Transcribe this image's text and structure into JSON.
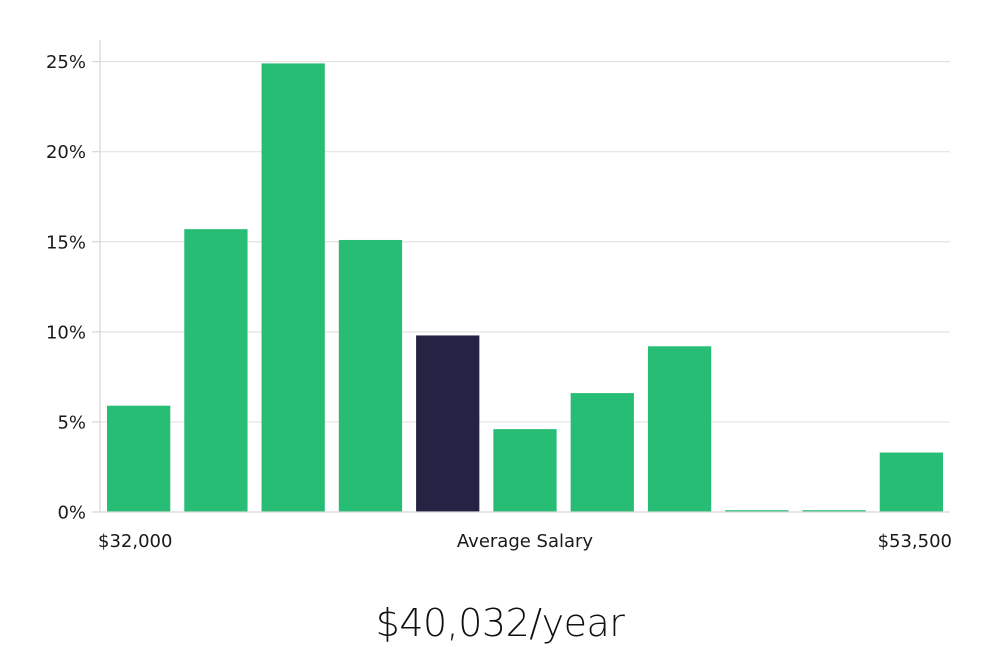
{
  "headline": "$40,032/year",
  "colors": {
    "bar": "#28bd75",
    "highlight": "#262243",
    "grid": "#e3e3e3",
    "axis": "#d6d6d6",
    "text": "#1a1a1a"
  },
  "chart_data": {
    "type": "bar",
    "title": "",
    "xlabel": "",
    "ylabel": "",
    "x_tick_labels": [
      {
        "label": "$32,000",
        "position": "left"
      },
      {
        "label": "Average Salary",
        "position": "center"
      },
      {
        "label": "$53,500",
        "position": "right"
      }
    ],
    "y_ticks": [
      0,
      5,
      10,
      15,
      20,
      25
    ],
    "y_tick_suffix": "%",
    "ylim": [
      0,
      26.2
    ],
    "values": [
      5.9,
      15.7,
      24.9,
      15.1,
      9.8,
      4.6,
      6.6,
      9.2,
      0.1,
      0.1,
      3.3
    ],
    "highlight_index": 4,
    "grid": true,
    "legend": "none"
  }
}
